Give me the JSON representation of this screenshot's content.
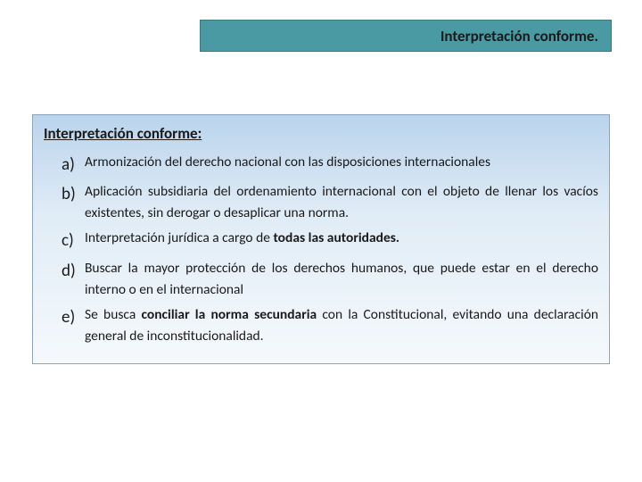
{
  "header": {
    "title": "Interpretación conforme.",
    "bg_color": "#4a9aa3",
    "border_color": "#3a7a82",
    "text_color": "#1a1a1a",
    "fontsize": 17
  },
  "content": {
    "title": "Interpretación conforme:",
    "bg_gradient_top": "#b9d4ec",
    "bg_gradient_mid": "#e0ecf6",
    "bg_gradient_bottom": "#f5f9fc",
    "border_color": "#8aa5bb",
    "title_fontsize": 17,
    "item_fontsize": 15.5,
    "marker_fontsize": 19,
    "items": [
      {
        "marker": "a)",
        "text_pre": "Armonización del derecho nacional con las disposiciones internacionales",
        "text_bold": "",
        "text_post": ""
      },
      {
        "marker": "b)",
        "text_pre": "Aplicación subsidiaria del ordenamiento internacional con el objeto de llenar los vacíos existentes, sin derogar o desaplicar  una norma.",
        "text_bold": "",
        "text_post": ""
      },
      {
        "marker": "c)",
        "text_pre": "Interpretación jurídica a cargo de ",
        "text_bold": "todas las autoridades.",
        "text_post": ""
      },
      {
        "marker": "d)",
        "text_pre": "Buscar la mayor protección de los derechos humanos, que puede estar en el derecho interno o en el internacional",
        "text_bold": "",
        "text_post": ""
      },
      {
        "marker": "e)",
        "text_pre": "Se busca ",
        "text_bold": "conciliar la norma secundaria",
        "text_post": " con la Constitucional, evitando una declaración general de inconstitucionalidad."
      }
    ]
  }
}
